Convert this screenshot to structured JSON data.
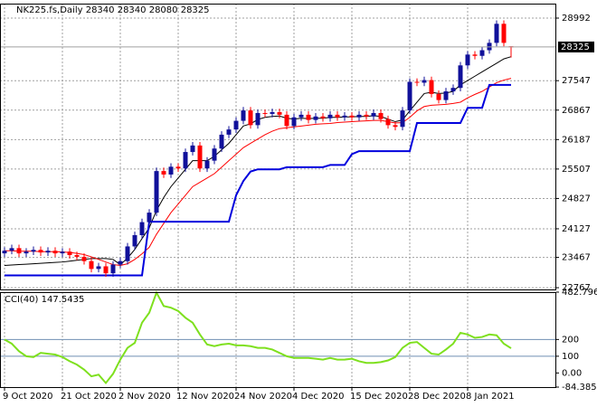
{
  "chart_data": [
    {
      "type": "candlestick",
      "title": "NK225.fs,Daily",
      "categories": [
        "9 Oct 2020",
        null,
        null,
        null,
        null,
        null,
        null,
        null,
        "21 Oct 2020",
        null,
        null,
        null,
        null,
        null,
        null,
        null,
        "2 Nov 2020",
        null,
        null,
        null,
        null,
        null,
        null,
        null,
        "12 Nov 2020",
        null,
        null,
        null,
        null,
        null,
        null,
        null,
        "24 Nov 2020",
        null,
        null,
        null,
        null,
        null,
        null,
        null,
        "4 Dec 2020",
        null,
        null,
        null,
        null,
        null,
        null,
        null,
        "15 Dec 2020",
        null,
        null,
        null,
        null,
        null,
        null,
        null,
        "28 Dec 2020",
        null,
        null,
        null,
        null,
        null,
        null,
        null,
        "8 Jan 2021",
        null,
        null,
        null,
        null,
        null,
        null
      ],
      "open": [
        23560,
        23620,
        23680,
        23560,
        23600,
        23640,
        23580,
        23620,
        23560,
        23600,
        23520,
        23480,
        23380,
        23200,
        23260,
        23100,
        23300,
        23380,
        23720,
        23980,
        24280,
        24500,
        25460,
        25380,
        25560,
        25520,
        25900,
        26050,
        25520,
        25700,
        25980,
        26300,
        26420,
        26620,
        26860,
        26520,
        26800,
        26780,
        26820,
        26760,
        26500,
        26700,
        26760,
        26640,
        26720,
        26680,
        26760,
        26700,
        26740,
        26700,
        26760,
        26720,
        26800,
        26660,
        26520,
        26480,
        26860,
        27520,
        27500,
        27560,
        27240,
        27100,
        27300,
        27380,
        27900,
        28150,
        28120,
        28250,
        28420,
        28860,
        28340
      ],
      "high": [
        23700,
        23760,
        23760,
        23680,
        23720,
        23720,
        23700,
        23700,
        23680,
        23680,
        23600,
        23560,
        23460,
        23340,
        23340,
        23380,
        23460,
        23800,
        24060,
        24360,
        24580,
        25540,
        25540,
        25640,
        25640,
        25980,
        26130,
        26130,
        25780,
        26060,
        26380,
        26500,
        26700,
        26940,
        26940,
        26880,
        26880,
        26900,
        26900,
        26840,
        26780,
        26840,
        26840,
        26800,
        26800,
        26840,
        26840,
        26820,
        26820,
        26840,
        26840,
        26880,
        26880,
        26740,
        26600,
        26940,
        27600,
        27600,
        27640,
        27640,
        27320,
        27380,
        27460,
        27980,
        28230,
        28230,
        28330,
        28500,
        28940,
        28940,
        28340
      ],
      "low": [
        23480,
        23540,
        23480,
        23480,
        23520,
        23500,
        23500,
        23480,
        23480,
        23440,
        23400,
        23300,
        23120,
        23120,
        23020,
        23020,
        23220,
        23300,
        23640,
        23900,
        24200,
        24420,
        25300,
        25300,
        25440,
        25440,
        25820,
        25440,
        25440,
        25620,
        25900,
        26220,
        26340,
        26540,
        26440,
        26440,
        26700,
        26700,
        26680,
        26420,
        26420,
        26620,
        26560,
        26560,
        26600,
        26600,
        26620,
        26620,
        26620,
        26620,
        26640,
        26640,
        26580,
        26440,
        26400,
        26400,
        26780,
        27420,
        27420,
        27160,
        27020,
        27020,
        27220,
        27300,
        27820,
        28040,
        28040,
        28170,
        28340,
        28340,
        28080
      ],
      "close": [
        23620,
        23680,
        23560,
        23600,
        23640,
        23580,
        23620,
        23560,
        23600,
        23520,
        23480,
        23380,
        23200,
        23260,
        23100,
        23300,
        23380,
        23720,
        23980,
        24280,
        24500,
        25460,
        25380,
        25560,
        25520,
        25900,
        26050,
        25520,
        25700,
        25980,
        26300,
        26420,
        26620,
        26860,
        26520,
        26800,
        26780,
        26820,
        26760,
        26500,
        26700,
        26760,
        26640,
        26720,
        26680,
        26760,
        26700,
        26740,
        26700,
        26760,
        26720,
        26800,
        26660,
        26520,
        26480,
        26860,
        27520,
        27500,
        27560,
        27240,
        27100,
        27300,
        27380,
        27900,
        28150,
        28120,
        28250,
        28420,
        28860,
        28420,
        28325
      ],
      "up_color": "#10109a",
      "down_color": "#ff0000",
      "overlays": [
        {
          "color": "#000000",
          "values": [
            23280,
            23290,
            23300,
            23310,
            23320,
            23330,
            23340,
            23350,
            23360,
            23380,
            23400,
            23420,
            23440,
            23440,
            23440,
            23420,
            23300,
            23450,
            23650,
            23900,
            24150,
            24550,
            24850,
            25100,
            25300,
            25500,
            25700,
            25700,
            25700,
            25800,
            25950,
            26100,
            26300,
            26500,
            26550,
            26650,
            26700,
            26720,
            26730,
            26680,
            26660,
            26680,
            26670,
            26680,
            26680,
            26700,
            26700,
            26710,
            26710,
            26720,
            26720,
            26740,
            26720,
            26660,
            26600,
            26640,
            26850,
            27050,
            27250,
            27280,
            27250,
            27260,
            27300,
            27450,
            27550,
            27650,
            27750,
            27850,
            27950,
            28050,
            28100
          ]
        },
        {
          "color": "#ff0000",
          "values": [
            23620,
            23620,
            23610,
            23610,
            23610,
            23600,
            23600,
            23600,
            23590,
            23580,
            23560,
            23530,
            23480,
            23420,
            23360,
            23300,
            23280,
            23320,
            23420,
            23550,
            23700,
            24000,
            24250,
            24500,
            24700,
            24900,
            25100,
            25200,
            25300,
            25400,
            25550,
            25700,
            25850,
            26000,
            26100,
            26200,
            26300,
            26380,
            26440,
            26460,
            26480,
            26500,
            26520,
            26540,
            26550,
            26560,
            26580,
            26590,
            26600,
            26610,
            26620,
            26630,
            26630,
            26600,
            26570,
            26580,
            26700,
            26850,
            26950,
            26980,
            26990,
            27000,
            27020,
            27050,
            27150,
            27230,
            27300,
            27400,
            27500,
            27560,
            27600
          ]
        },
        {
          "color": "#0000dd",
          "values": [
            23050,
            23050,
            23050,
            23050,
            23050,
            23050,
            23050,
            23050,
            23050,
            23050,
            23050,
            23050,
            23050,
            23050,
            23050,
            23050,
            23050,
            23050,
            23050,
            23050,
            24290,
            24290,
            24290,
            24290,
            24290,
            24290,
            24290,
            24290,
            24290,
            24290,
            24290,
            24290,
            24900,
            25230,
            25450,
            25500,
            25500,
            25500,
            25500,
            25550,
            25550,
            25550,
            25550,
            25550,
            25550,
            25600,
            25600,
            25600,
            25850,
            25920,
            25920,
            25920,
            25920,
            25920,
            25920,
            25920,
            25920,
            26570,
            26570,
            26570,
            26570,
            26570,
            26570,
            26570,
            26920,
            26920,
            26920,
            27450,
            27450,
            27450,
            27450
          ]
        }
      ],
      "ylim": [
        22727,
        29326
      ],
      "yticks": [
        28992,
        27547,
        26867,
        26187,
        25507,
        24827,
        24127,
        23467,
        22767
      ],
      "grid": true
    },
    {
      "type": "line",
      "title": "CCI(40)",
      "color": "#7ee01e",
      "values": [
        200,
        175,
        130,
        100,
        95,
        120,
        115,
        110,
        95,
        70,
        50,
        20,
        -20,
        -10,
        -60,
        -5,
        80,
        150,
        180,
        300,
        360,
        480,
        400,
        390,
        370,
        330,
        300,
        230,
        170,
        160,
        170,
        175,
        165,
        165,
        160,
        150,
        150,
        140,
        120,
        100,
        90,
        90,
        90,
        85,
        80,
        90,
        80,
        80,
        85,
        70,
        60,
        60,
        65,
        75,
        95,
        150,
        180,
        185,
        150,
        115,
        110,
        140,
        175,
        240,
        230,
        210,
        215,
        230,
        225,
        175,
        147.5435
      ],
      "ylim": [
        -84.3857,
        482.7966
      ],
      "yticks": [
        482.7966,
        200,
        100,
        {
          "value": 0,
          "label": "0.00"
        },
        -84.3857
      ],
      "levels": [
        200,
        100
      ],
      "level_color": "#6f8fb3"
    }
  ]
}
